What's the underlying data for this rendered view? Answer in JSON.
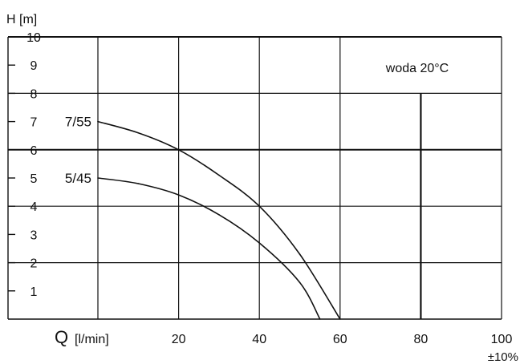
{
  "chart_data": {
    "type": "line",
    "ylabel": "H [m]",
    "xlabel_symbol": "Q",
    "xlabel_unit": "[l/min]",
    "xlim": [
      0,
      100
    ],
    "ylim": [
      0,
      10
    ],
    "x_ticks": [
      "20",
      "40",
      "60",
      "80",
      "100"
    ],
    "y_ticks": [
      "1",
      "2",
      "3",
      "4",
      "5",
      "6",
      "7",
      "8",
      "9",
      "10"
    ],
    "tolerance": "±10%",
    "annotation": "woda 20°C",
    "grid": true,
    "series": [
      {
        "name": "7/55",
        "x": [
          0,
          10,
          20,
          30,
          40,
          50,
          60
        ],
        "y": [
          7.0,
          6.6,
          6.0,
          5.1,
          4.0,
          2.3,
          0
        ]
      },
      {
        "name": "5/45",
        "x": [
          0,
          10,
          20,
          30,
          40,
          50,
          55
        ],
        "y": [
          5.0,
          4.8,
          4.4,
          3.7,
          2.7,
          1.3,
          0
        ]
      }
    ]
  }
}
